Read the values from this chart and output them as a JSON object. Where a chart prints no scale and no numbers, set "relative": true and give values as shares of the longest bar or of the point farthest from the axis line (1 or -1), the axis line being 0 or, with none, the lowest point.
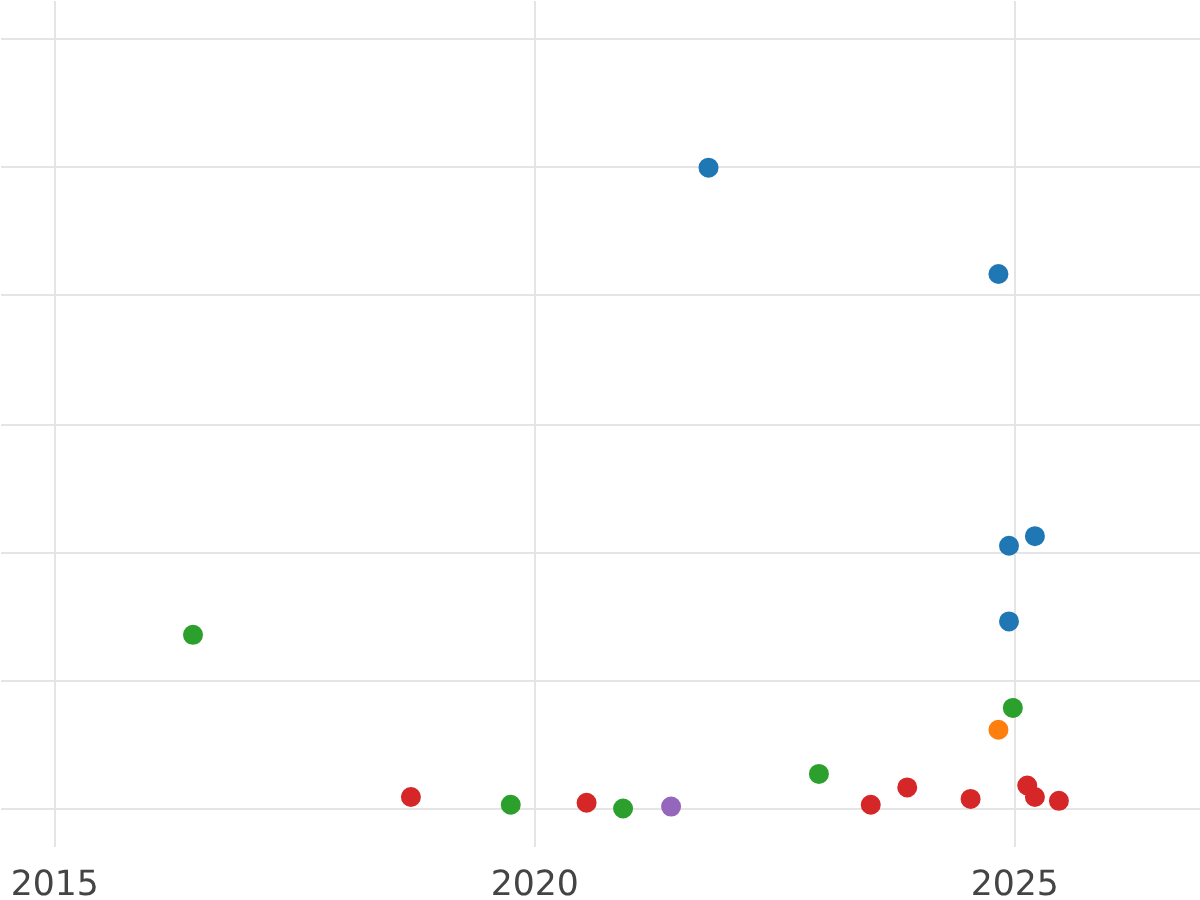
{
  "chart_data": {
    "type": "scatter",
    "relative": true,
    "marker": "circle",
    "grid": true,
    "xlim": [
      2014.44,
      2026.94
    ],
    "xticks": [
      2015,
      2020,
      2025
    ],
    "series": [
      {
        "color": "#1f77b4",
        "x": [
          2021.81,
          2024.83,
          2024.94,
          2025.21,
          2024.94
        ],
        "values": [
          1.0,
          0.834,
          0.41,
          0.425,
          0.292
        ]
      },
      {
        "color": "#2ca02c",
        "x": [
          2016.44,
          2019.75,
          2020.92,
          2022.96,
          2024.98
        ],
        "values": [
          0.271,
          0.006,
          0,
          0.054,
          0.157
        ]
      },
      {
        "color": "#ff7f0e",
        "x": [
          2024.83
        ],
        "values": [
          0.123
        ]
      },
      {
        "color": "#d62728",
        "x": [
          2018.71,
          2020.54,
          2023.5,
          2023.88,
          2024.54,
          2025.13,
          2025.21,
          2025.46
        ],
        "values": [
          0.018,
          0.009,
          0.006,
          0.033,
          0.015,
          0.036,
          0.018,
          0.012
        ]
      },
      {
        "color": "#9467bd",
        "x": [
          2021.42
        ],
        "values": [
          0.003
        ]
      }
    ]
  }
}
